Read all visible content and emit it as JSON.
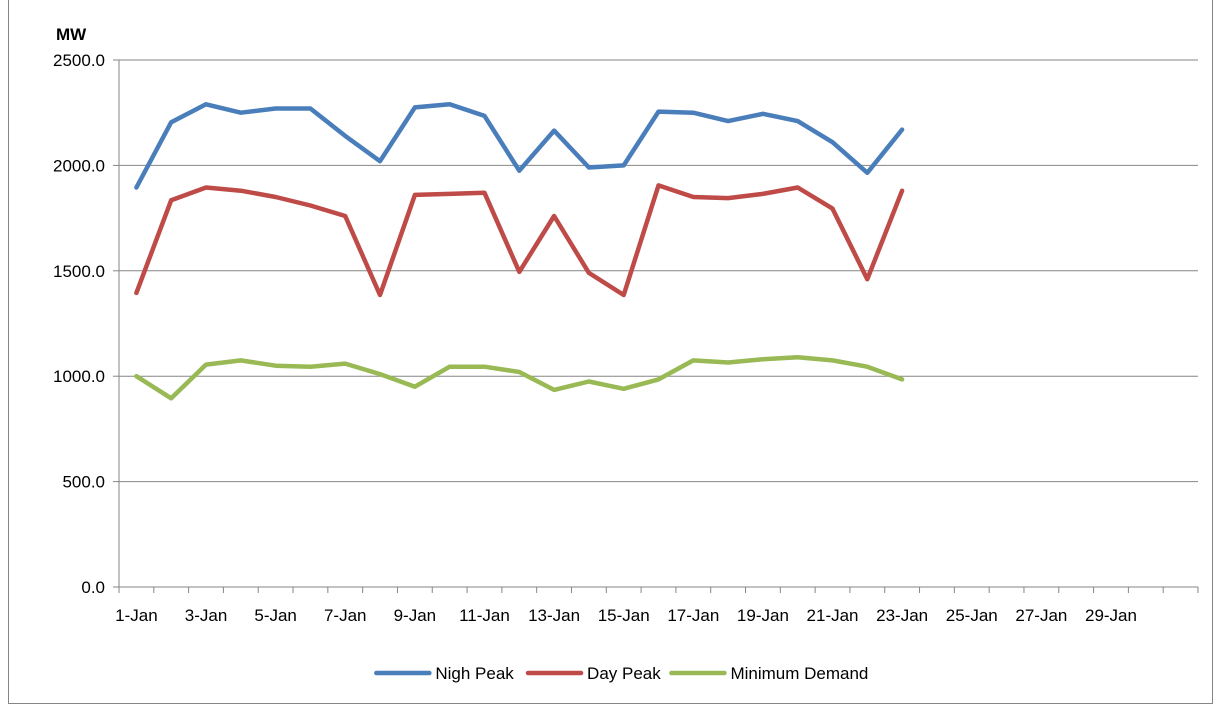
{
  "chart_data": {
    "type": "line",
    "ylabel": "MW",
    "ylim": [
      0,
      2500
    ],
    "y_ticks": [
      "0.0",
      "500.0",
      "1000.0",
      "1500.0",
      "2000.0",
      "2500.0"
    ],
    "x_categories": [
      "1-Jan",
      "2-Jan",
      "3-Jan",
      "4-Jan",
      "5-Jan",
      "6-Jan",
      "7-Jan",
      "8-Jan",
      "9-Jan",
      "10-Jan",
      "11-Jan",
      "12-Jan",
      "13-Jan",
      "14-Jan",
      "15-Jan",
      "16-Jan",
      "17-Jan",
      "18-Jan",
      "19-Jan",
      "20-Jan",
      "21-Jan",
      "22-Jan",
      "23-Jan",
      "24-Jan",
      "25-Jan",
      "26-Jan",
      "27-Jan",
      "28-Jan",
      "29-Jan",
      "30-Jan",
      "31-Jan"
    ],
    "x_tick_labels": [
      "1-Jan",
      "3-Jan",
      "5-Jan",
      "7-Jan",
      "9-Jan",
      "11-Jan",
      "13-Jan",
      "15-Jan",
      "17-Jan",
      "19-Jan",
      "21-Jan",
      "23-Jan",
      "25-Jan",
      "27-Jan",
      "29-Jan"
    ],
    "grid": "horizontal",
    "legend_position": "bottom",
    "series": [
      {
        "name": "Nigh Peak",
        "color": "#4a7ebb",
        "values": [
          1895,
          2205,
          2290,
          2250,
          2270,
          2270,
          2140,
          2020,
          2275,
          2290,
          2235,
          1975,
          2165,
          1990,
          2000,
          2255,
          2250,
          2210,
          2245,
          2210,
          2110,
          1965,
          2170
        ]
      },
      {
        "name": "Day Peak",
        "color": "#be4b48",
        "values": [
          1395,
          1835,
          1895,
          1880,
          1850,
          1810,
          1760,
          1385,
          1860,
          1865,
          1870,
          1495,
          1760,
          1490,
          1385,
          1905,
          1850,
          1845,
          1865,
          1895,
          1795,
          1460,
          1880
        ]
      },
      {
        "name": "Minimum Demand",
        "color": "#98b954",
        "values": [
          1000,
          895,
          1055,
          1075,
          1050,
          1045,
          1060,
          1010,
          950,
          1045,
          1045,
          1020,
          935,
          975,
          940,
          985,
          1075,
          1065,
          1080,
          1090,
          1075,
          1045,
          985
        ]
      }
    ]
  }
}
